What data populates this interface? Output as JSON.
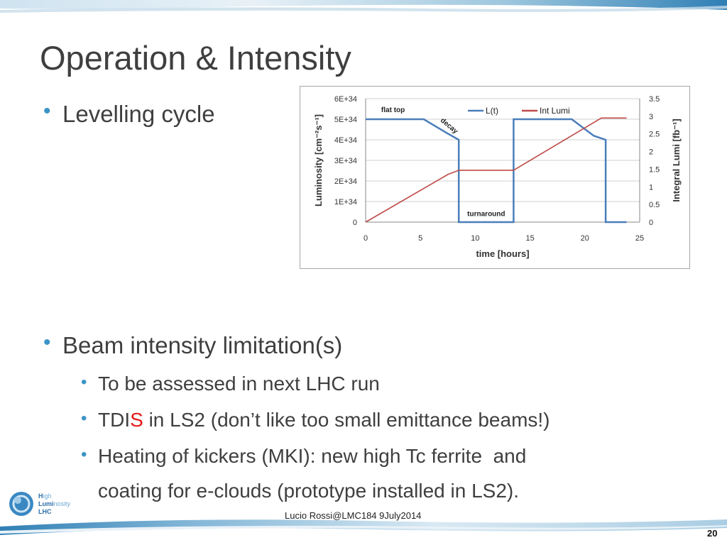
{
  "slide": {
    "title": "Operation & Intensity",
    "bullets": [
      {
        "text": "Levelling cycle"
      },
      {
        "text": "Beam intensity limitation(s)"
      }
    ],
    "sub_bullets": [
      {
        "text": "To be assessed in next LHC run"
      },
      {
        "pre": "TDI",
        "highlight": "S",
        "post": " in LS2 (don’t like too small emittance beams!)"
      },
      {
        "line1": "Heating of kickers (MKI): new high Tc ferrite  and",
        "line2": "coating for e-clouds (prototype installed in LS2)."
      }
    ],
    "footer": "Lucio Rossi@LMC184 9July2014",
    "page_number": "20",
    "logo": {
      "word1_a": "H",
      "word1_b": "igh",
      "word2_a": "Lumi",
      "word2_b": "nosity",
      "word3": "LHC"
    },
    "colors": {
      "title": "#3f3f3f",
      "bullet": "#3b94c6",
      "highlight": "#e31a1a",
      "band": "#2f7fb5"
    }
  },
  "chart_data": {
    "type": "line",
    "xlabel": "time [hours]",
    "ylabel": "Luminosity  [cm⁻²s⁻¹]",
    "y2label": "Integral Lumi [fb⁻¹]",
    "xlim": [
      0,
      25
    ],
    "ylim": [
      0,
      6e+34
    ],
    "y2lim": [
      0,
      3.5
    ],
    "xticks": [
      "0",
      "5",
      "10",
      "15",
      "20",
      "25"
    ],
    "yticks": [
      "0",
      "1E+34",
      "2E+34",
      "3E+34",
      "4E+34",
      "5E+34",
      "6E+34"
    ],
    "y2ticks": [
      "0",
      "0.5",
      "1",
      "1.5",
      "2",
      "2.5",
      "3",
      "3.5"
    ],
    "grid": true,
    "legend": "top-center",
    "series": [
      {
        "name": "L(t)",
        "axis": "left",
        "color": "#4a7ebb",
        "x": [
          0,
          5.3,
          7.5,
          8.5,
          8.5,
          13.5,
          13.5,
          18.8,
          20.8,
          21.9,
          21.9,
          23.8
        ],
        "y": [
          5e+34,
          5e+34,
          4.3e+34,
          4e+34,
          0,
          0,
          5e+34,
          5e+34,
          4.2e+34,
          4e+34,
          0,
          0
        ]
      },
      {
        "name": "Int Lumi",
        "axis": "right",
        "color": "#be4b48",
        "x": [
          0,
          7.5,
          8.5,
          13.5,
          21.5,
          23.8
        ],
        "y": [
          0,
          1.35,
          1.47,
          1.47,
          2.95,
          2.95
        ]
      }
    ],
    "annotations": [
      {
        "text": "flat top",
        "x": 2.5,
        "y": 5.35e+34
      },
      {
        "text": "decay",
        "x": 7.5,
        "y": 4.6e+34
      },
      {
        "text": "turnaround",
        "x": 11,
        "y": 3e+33
      }
    ]
  }
}
